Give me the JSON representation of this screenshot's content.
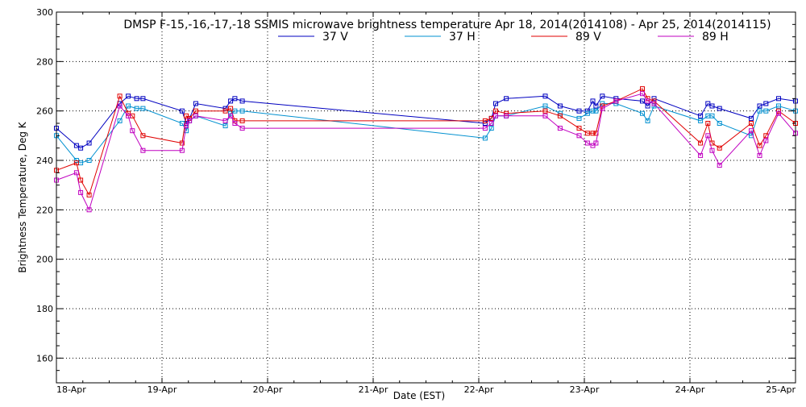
{
  "chart_data": {
    "type": "line",
    "title": "DMSP F-15,-16,-17,-18 SSMIS microwave brightness temperature Apr 18, 2014(2014108) - Apr 25, 2014(2014115)",
    "xlabel": "Date (EST)",
    "ylabel": "Brightness Temperature, Deg K",
    "xlim": [
      0,
      7
    ],
    "ylim": [
      150,
      300
    ],
    "grid": true,
    "legend_position": "top-center",
    "x_ticks": [
      {
        "value": 0,
        "label": "18-Apr"
      },
      {
        "value": 1,
        "label": "19-Apr"
      },
      {
        "value": 2,
        "label": "20-Apr"
      },
      {
        "value": 3,
        "label": "21-Apr"
      },
      {
        "value": 4,
        "label": "22-Apr"
      },
      {
        "value": 5,
        "label": "23-Apr"
      },
      {
        "value": 6,
        "label": "24-Apr"
      },
      {
        "value": 7,
        "label": "25-Apr"
      }
    ],
    "y_ticks": [
      {
        "value": 160,
        "label": "160"
      },
      {
        "value": 180,
        "label": "180"
      },
      {
        "value": 200,
        "label": "200"
      },
      {
        "value": 220,
        "label": "220"
      },
      {
        "value": 240,
        "label": "240"
      },
      {
        "value": 260,
        "label": "260"
      },
      {
        "value": 280,
        "label": "280"
      },
      {
        "value": 300,
        "label": "300"
      }
    ],
    "series": [
      {
        "name": "37 V",
        "color": "#0000c0",
        "points": [
          [
            0.0,
            253
          ],
          [
            0.19,
            246
          ],
          [
            0.23,
            245
          ],
          [
            0.31,
            247
          ],
          [
            0.6,
            263
          ],
          [
            0.68,
            266
          ],
          [
            0.76,
            265
          ],
          [
            0.82,
            265
          ],
          [
            1.19,
            260
          ],
          [
            1.23,
            255
          ],
          [
            1.26,
            257
          ],
          [
            1.32,
            263
          ],
          [
            1.6,
            261
          ],
          [
            1.65,
            264
          ],
          [
            1.69,
            265
          ],
          [
            1.76,
            264
          ],
          [
            4.06,
            255
          ],
          [
            4.12,
            257
          ],
          [
            4.16,
            263
          ],
          [
            4.26,
            265
          ],
          [
            4.63,
            266
          ],
          [
            4.77,
            262
          ],
          [
            4.95,
            260
          ],
          [
            5.03,
            260
          ],
          [
            5.08,
            264
          ],
          [
            5.11,
            262
          ],
          [
            5.17,
            266
          ],
          [
            5.3,
            265
          ],
          [
            5.55,
            264
          ],
          [
            5.6,
            262
          ],
          [
            5.66,
            265
          ],
          [
            6.1,
            258
          ],
          [
            6.17,
            263
          ],
          [
            6.21,
            262
          ],
          [
            6.28,
            261
          ],
          [
            6.58,
            257
          ],
          [
            6.66,
            262
          ],
          [
            6.72,
            263
          ],
          [
            6.84,
            265
          ],
          [
            7.0,
            264
          ]
        ]
      },
      {
        "name": "37 H",
        "color": "#0090d0",
        "points": [
          [
            0.0,
            250
          ],
          [
            0.19,
            240
          ],
          [
            0.23,
            239
          ],
          [
            0.31,
            240
          ],
          [
            0.6,
            256
          ],
          [
            0.68,
            262
          ],
          [
            0.76,
            261
          ],
          [
            0.82,
            261
          ],
          [
            1.19,
            255
          ],
          [
            1.23,
            252
          ],
          [
            1.26,
            256
          ],
          [
            1.32,
            258
          ],
          [
            1.6,
            254
          ],
          [
            1.65,
            259
          ],
          [
            1.69,
            260
          ],
          [
            1.76,
            260
          ],
          [
            4.06,
            249
          ],
          [
            4.12,
            253
          ],
          [
            4.16,
            258
          ],
          [
            4.26,
            258
          ],
          [
            4.63,
            262
          ],
          [
            4.77,
            259
          ],
          [
            4.95,
            257
          ],
          [
            5.03,
            259
          ],
          [
            5.08,
            260
          ],
          [
            5.11,
            260
          ],
          [
            5.17,
            263
          ],
          [
            5.3,
            263
          ],
          [
            5.55,
            259
          ],
          [
            5.6,
            256
          ],
          [
            5.66,
            262
          ],
          [
            6.1,
            256
          ],
          [
            6.17,
            258
          ],
          [
            6.21,
            258
          ],
          [
            6.28,
            255
          ],
          [
            6.58,
            250
          ],
          [
            6.66,
            260
          ],
          [
            6.72,
            260
          ],
          [
            6.84,
            262
          ],
          [
            7.0,
            260
          ]
        ]
      },
      {
        "name": "89 V",
        "color": "#e00000",
        "points": [
          [
            0.0,
            236
          ],
          [
            0.19,
            239
          ],
          [
            0.23,
            232
          ],
          [
            0.31,
            226
          ],
          [
            0.6,
            266
          ],
          [
            0.68,
            259
          ],
          [
            0.72,
            258
          ],
          [
            0.82,
            250
          ],
          [
            1.19,
            247
          ],
          [
            1.23,
            258
          ],
          [
            1.26,
            257
          ],
          [
            1.32,
            260
          ],
          [
            1.6,
            260
          ],
          [
            1.65,
            261
          ],
          [
            1.69,
            256
          ],
          [
            1.76,
            256
          ],
          [
            4.06,
            256
          ],
          [
            4.12,
            257
          ],
          [
            4.16,
            260
          ],
          [
            4.26,
            259
          ],
          [
            4.63,
            260
          ],
          [
            4.77,
            258
          ],
          [
            4.95,
            253
          ],
          [
            5.03,
            251
          ],
          [
            5.08,
            251
          ],
          [
            5.11,
            251
          ],
          [
            5.17,
            262
          ],
          [
            5.3,
            264
          ],
          [
            5.55,
            269
          ],
          [
            5.6,
            265
          ],
          [
            5.66,
            264
          ],
          [
            6.1,
            247
          ],
          [
            6.17,
            255
          ],
          [
            6.21,
            247
          ],
          [
            6.28,
            245
          ],
          [
            6.58,
            255
          ],
          [
            6.66,
            246
          ],
          [
            6.72,
            250
          ],
          [
            6.84,
            260
          ],
          [
            7.0,
            255
          ]
        ]
      },
      {
        "name": "89 H",
        "color": "#c000c0",
        "points": [
          [
            0.0,
            232
          ],
          [
            0.19,
            235
          ],
          [
            0.23,
            227
          ],
          [
            0.31,
            220
          ],
          [
            0.6,
            262
          ],
          [
            0.68,
            258
          ],
          [
            0.72,
            252
          ],
          [
            0.82,
            244
          ],
          [
            1.19,
            244
          ],
          [
            1.23,
            254
          ],
          [
            1.26,
            256
          ],
          [
            1.32,
            258
          ],
          [
            1.6,
            256
          ],
          [
            1.65,
            258
          ],
          [
            1.69,
            255
          ],
          [
            1.76,
            253
          ],
          [
            4.06,
            253
          ],
          [
            4.12,
            255
          ],
          [
            4.16,
            258
          ],
          [
            4.26,
            258
          ],
          [
            4.63,
            258
          ],
          [
            4.77,
            253
          ],
          [
            4.95,
            250
          ],
          [
            5.03,
            247
          ],
          [
            5.08,
            246
          ],
          [
            5.11,
            247
          ],
          [
            5.17,
            261
          ],
          [
            5.3,
            264
          ],
          [
            5.55,
            267
          ],
          [
            5.6,
            264
          ],
          [
            5.66,
            263
          ],
          [
            6.1,
            242
          ],
          [
            6.17,
            250
          ],
          [
            6.21,
            244
          ],
          [
            6.28,
            238
          ],
          [
            6.58,
            252
          ],
          [
            6.66,
            242
          ],
          [
            6.72,
            248
          ],
          [
            6.84,
            259
          ],
          [
            7.0,
            251
          ]
        ]
      }
    ]
  }
}
